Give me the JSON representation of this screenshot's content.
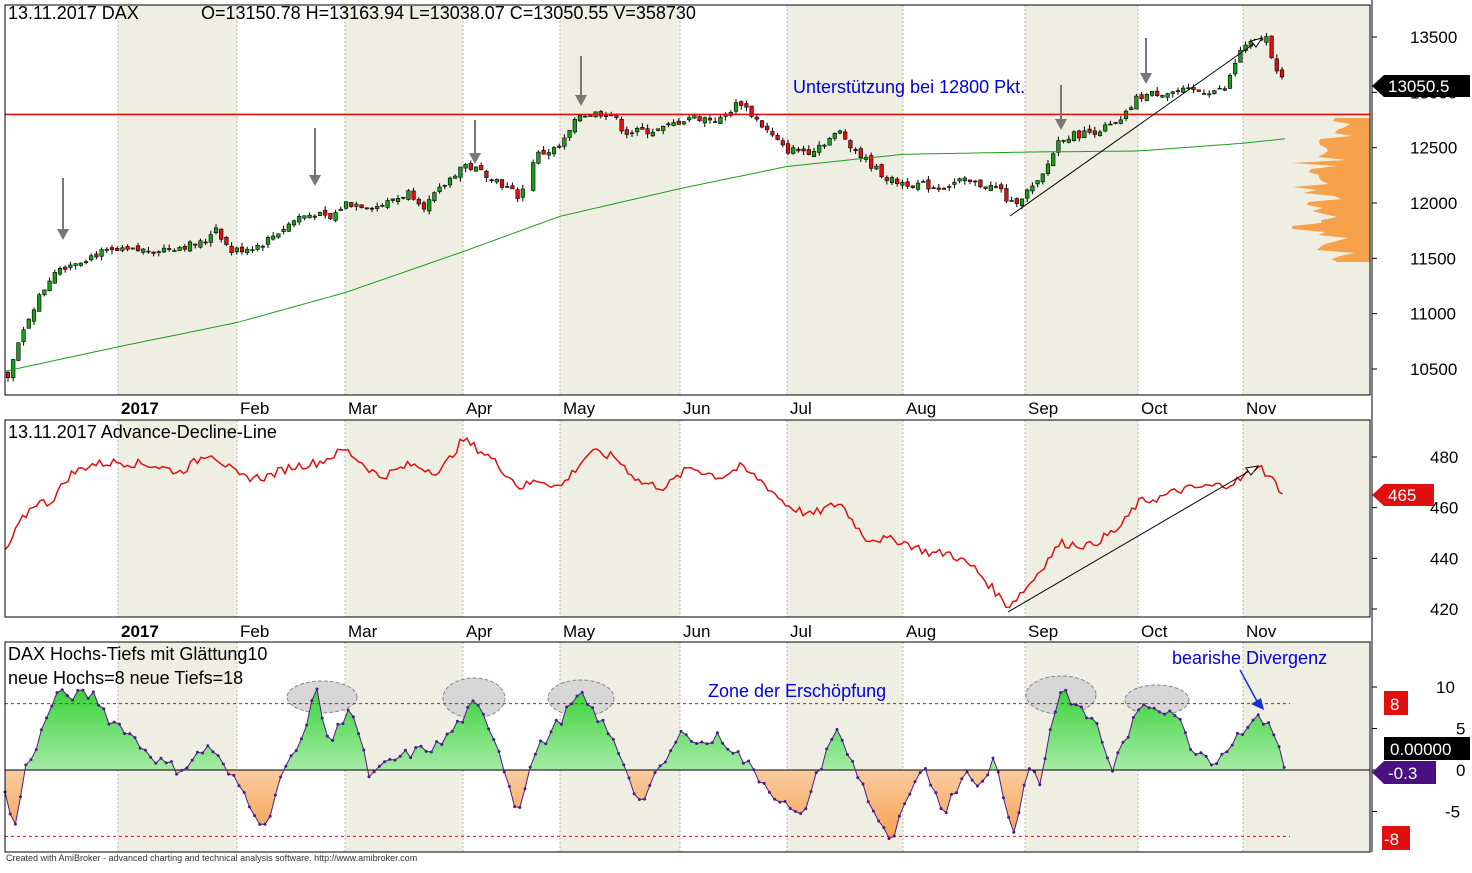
{
  "colors": {
    "up_candle": "#1a9e1a",
    "down_candle": "#e01010",
    "support_line": "#e01010",
    "sma_line": "#1e9e1e",
    "adline": "#e01010",
    "annotation_text": "#0000dd",
    "volume_profile": "#f7a14a",
    "price_tag_bg": "#000000",
    "ad_tag_bg": "#e01010",
    "osc_up_fill": "#39d339",
    "osc_down_fill": "#f5a050",
    "osc_line": "#4b1c8a",
    "osc_marker_bg": "#e01010",
    "value_tag_purple": "#4a1080",
    "month_band": "#eeeee2"
  },
  "months": [
    "2017",
    "Feb",
    "Mar",
    "Apr",
    "May",
    "Jun",
    "Jul",
    "Aug",
    "Sep",
    "Oct",
    "Nov"
  ],
  "price_panel": {
    "header_date": "13.11.2017",
    "symbol": "DAX",
    "ohlcv": "O=13150.78  H=13163.94  L=13038.07  C=13050.55  V=358730",
    "support_label": "Unterstützung bei 12800 Pkt.",
    "last_price_tag": "13050.5",
    "y_ticks": [
      "13500",
      "13000",
      "12500",
      "12000",
      "11500",
      "11000",
      "10500"
    ]
  },
  "ad_panel": {
    "title": "13.11.2017 Advance-Decline-Line",
    "value_tag": "465",
    "y_ticks": [
      "480",
      "460",
      "440",
      "420"
    ]
  },
  "osc_panel": {
    "title": "DAX Hochs-Tiefs mit Glättung10",
    "subtitle": "neue Hochs=8   neue Tiefs=18",
    "zone_label": "Zone der Erschöpfung",
    "divergence_label": "bearishe Divergenz",
    "marker_top": "8",
    "marker_bottom": "-8",
    "value_black": "0.00000",
    "value_purple": "-0.3",
    "y_ticks": [
      "10",
      "5",
      "0",
      "-5"
    ]
  },
  "footer_text": "Created with AmiBroker - advanced charting and technical analysis software. http://www.amibroker.com",
  "chart_data": [
    {
      "type": "candlestick",
      "symbol": "DAX",
      "x": [
        "2017-01",
        "2017-02",
        "2017-03",
        "2017-04",
        "2017-05",
        "2017-06",
        "2017-07",
        "2017-08",
        "2017-09",
        "2017-10",
        "2017-11"
      ],
      "close_monthly_approx": [
        11535,
        11835,
        12313,
        12438,
        12615,
        12325,
        12118,
        12055,
        12829,
        13230,
        13050
      ],
      "series": [
        {
          "name": "SMA",
          "values": [
            10600,
            10780,
            11000,
            11280,
            11560,
            11800,
            12000,
            12100,
            12120,
            12210,
            12370
          ]
        }
      ],
      "support_level": 12800,
      "ylim": [
        10300,
        13700
      ],
      "annotations": [
        "Unterstützung bei 12800 Pkt."
      ]
    },
    {
      "type": "line",
      "title": "13.11.2017 Advance-Decline-Line",
      "x": [
        "2017-01",
        "2017-02",
        "2017-03",
        "2017-04",
        "2017-05",
        "2017-06",
        "2017-07",
        "2017-08",
        "2017-09",
        "2017-10",
        "2017-11"
      ],
      "values": [
        442,
        478,
        476,
        487,
        472,
        478,
        462,
        450,
        422,
        463,
        472
      ],
      "last_value": 465,
      "ylim": [
        410,
        490
      ]
    },
    {
      "type": "area",
      "title": "DAX Hochs-Tiefs mit Glättung10",
      "x": [
        "2017-01",
        "2017-02",
        "2017-03",
        "2017-04",
        "2017-05",
        "2017-06",
        "2017-07",
        "2017-08",
        "2017-09",
        "2017-10",
        "2017-11"
      ],
      "values": [
        9,
        2,
        5,
        6,
        7,
        3,
        2,
        -6,
        9,
        7,
        6
      ],
      "thresholds": [
        8,
        -8
      ],
      "last_value": -0.3,
      "ylim": [
        -10,
        13
      ]
    }
  ]
}
